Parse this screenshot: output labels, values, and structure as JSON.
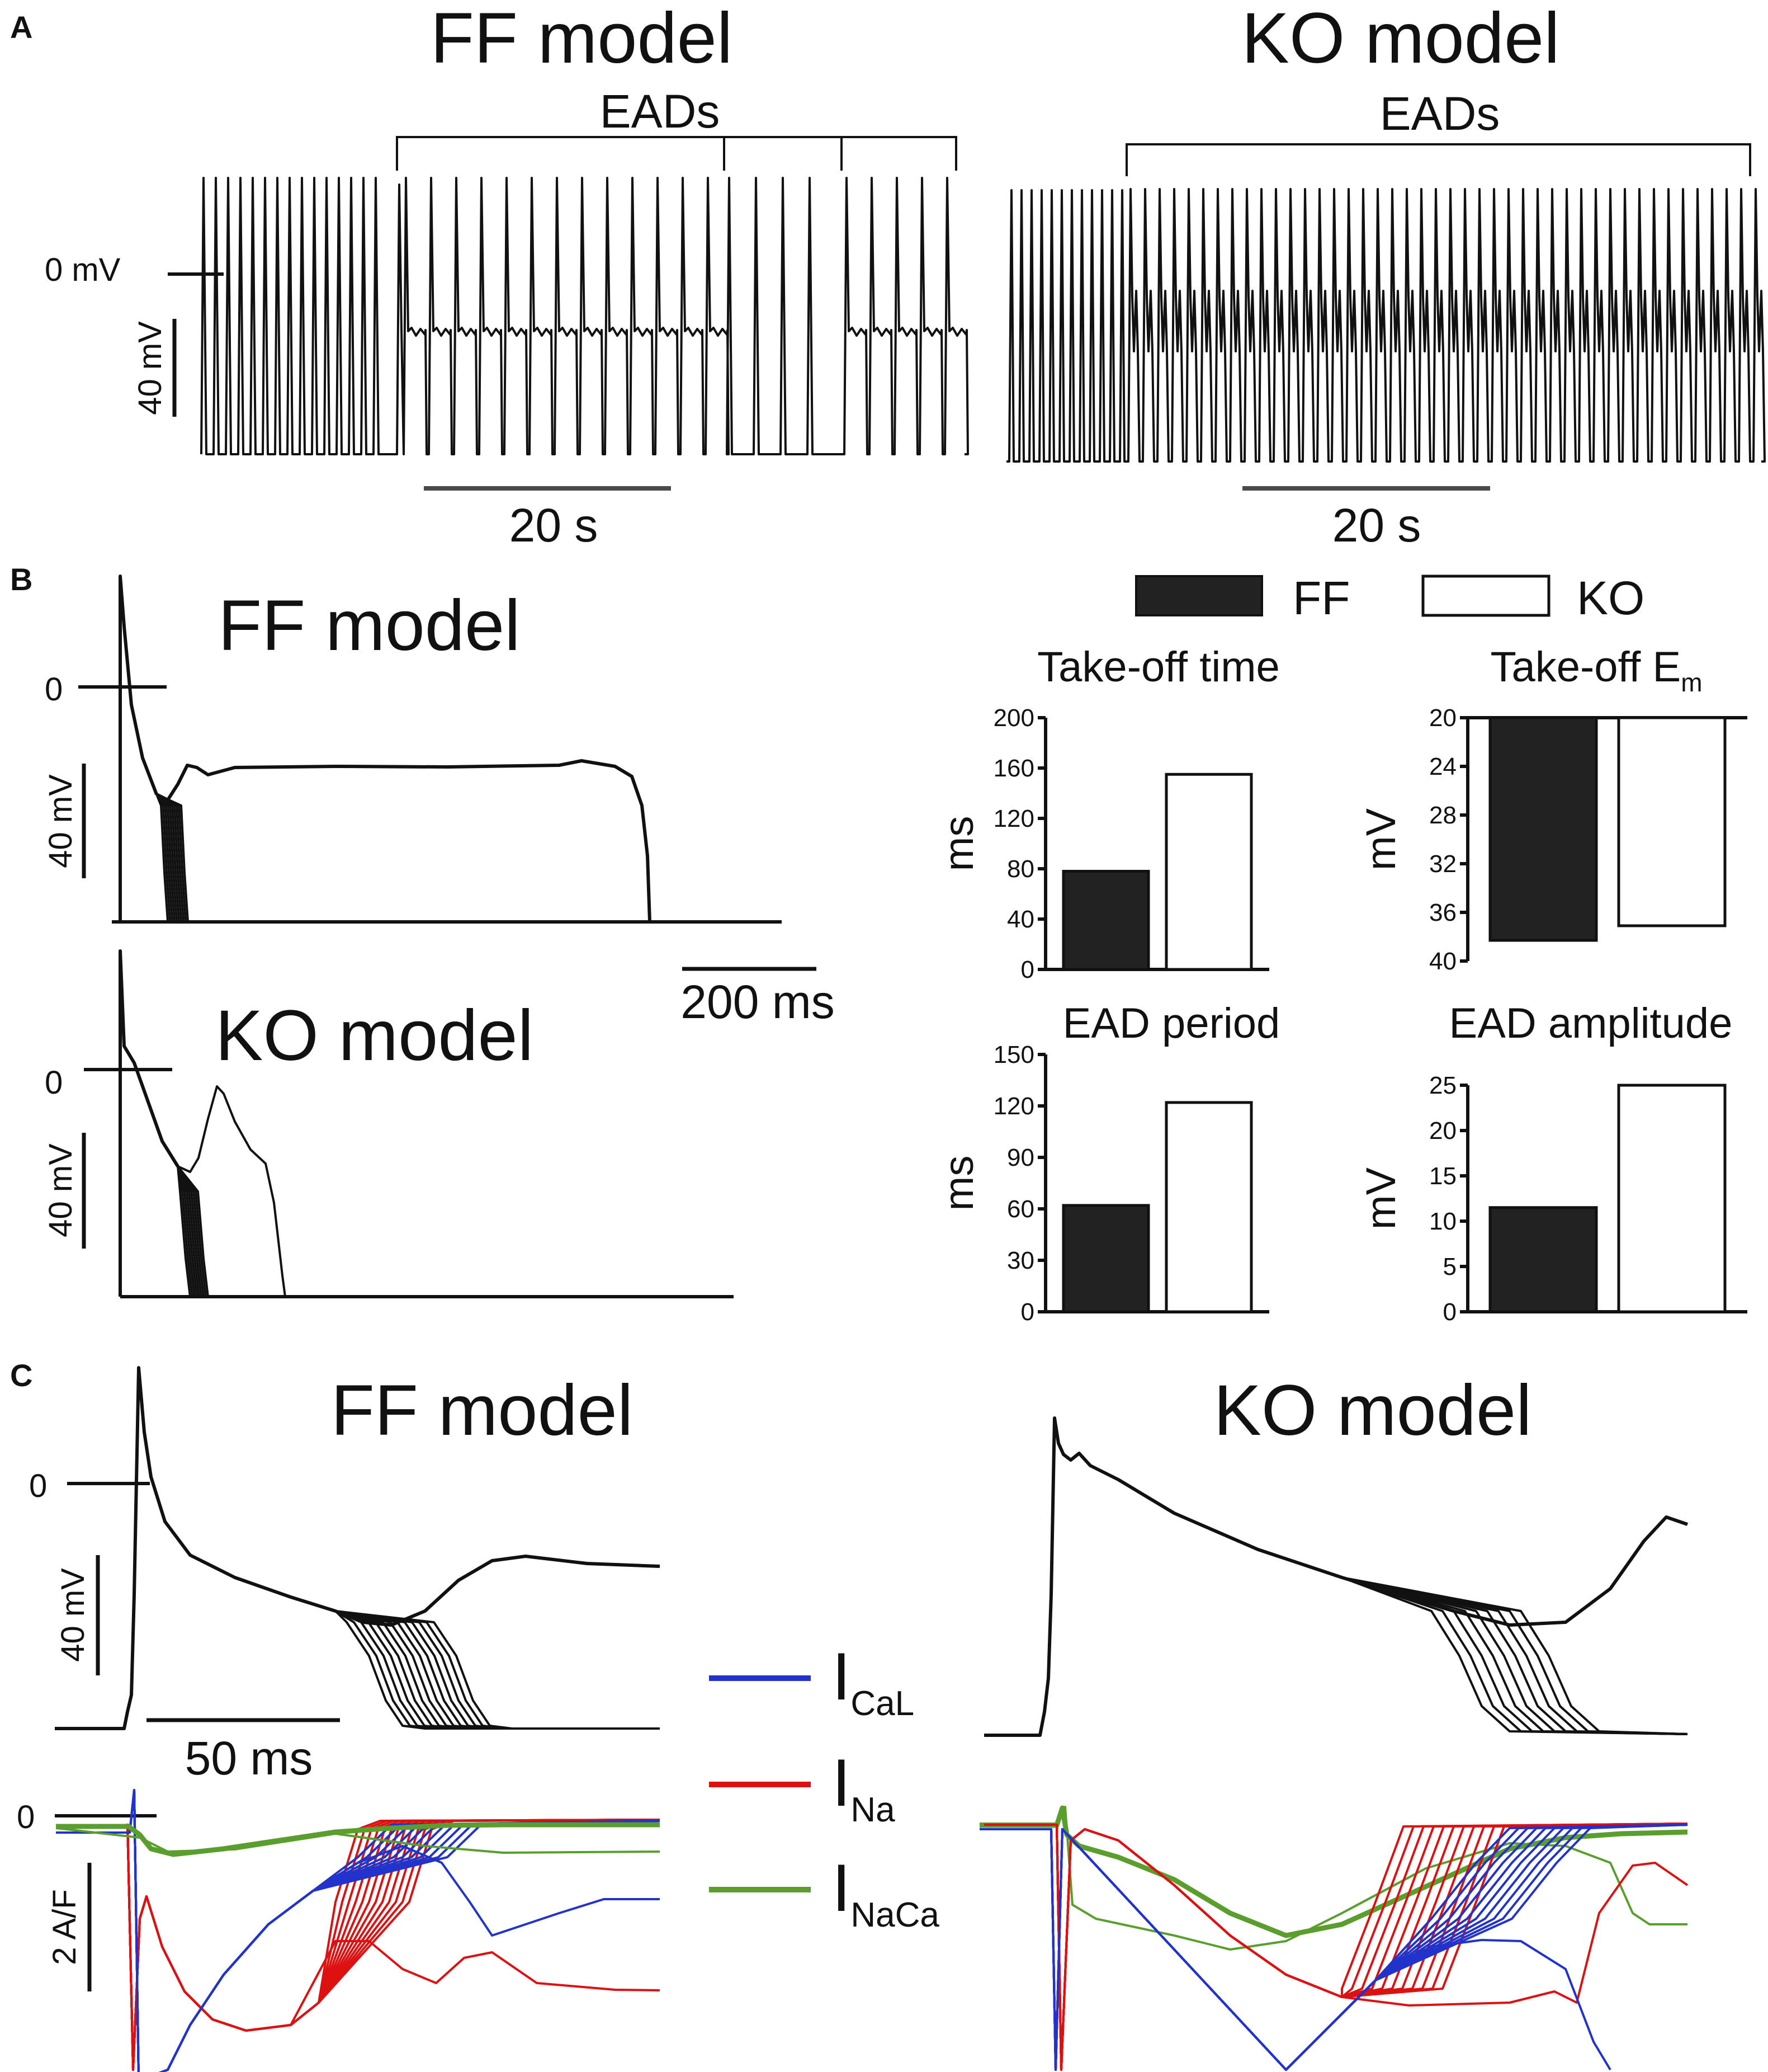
{
  "colors": {
    "ical": "#2233cc",
    "ina": "#dd1111",
    "inaca": "#5a9e2e",
    "ink": "#111111"
  },
  "panel_a": {
    "label": "A",
    "zero_label": "0 mV",
    "scale_mv": "40 mV",
    "ff": {
      "title": "FF model",
      "bracket_label": "EADs",
      "time_scale": "20 s"
    },
    "ko": {
      "title": "KO model",
      "bracket_label": "EADs",
      "time_scale": "20 s"
    }
  },
  "panel_b": {
    "label": "B",
    "ff": {
      "title": "FF model",
      "zero": "0",
      "scale_mv": "40 mV",
      "time_scale": "200 ms"
    },
    "ko": {
      "title": "KO model",
      "zero": "0",
      "scale_mv": "40 mV"
    },
    "legend": {
      "ff": "FF",
      "ko": "KO"
    }
  },
  "panel_c": {
    "label": "C",
    "ff": {
      "title": "FF model",
      "zero": "0",
      "scale_mv": "40 mV",
      "time_scale": "50 ms",
      "current_zero": "0",
      "current_scale": "2 A/F"
    },
    "ko": {
      "title": "KO model"
    },
    "legend": [
      {
        "main": "I",
        "sub": "CaL",
        "color": "#2233cc"
      },
      {
        "main": "I",
        "sub": "Na",
        "color": "#dd1111"
      },
      {
        "main": "I",
        "sub": "NaCa",
        "color": "#5a9e2e"
      }
    ]
  },
  "chart_data": [
    {
      "type": "bar",
      "title": "Take-off time",
      "ylabel": "ms",
      "categories": [
        "FF",
        "KO"
      ],
      "values": [
        78,
        155
      ],
      "ylim": [
        0,
        200
      ],
      "yticks": [
        "0",
        "40",
        "80",
        "120",
        "160",
        "200"
      ],
      "inverted": false
    },
    {
      "type": "bar",
      "title": "Take-off E",
      "title_sub": "m",
      "ylabel": "mV",
      "categories": [
        "FF",
        "KO"
      ],
      "values": [
        38.3,
        37.1
      ],
      "ylim": [
        20,
        40
      ],
      "yticks": [
        "20",
        "24",
        "28",
        "32",
        "36",
        "40"
      ],
      "inverted": true
    },
    {
      "type": "bar",
      "title": "EAD period",
      "ylabel": "ms",
      "categories": [
        "FF",
        "KO"
      ],
      "values": [
        62,
        122
      ],
      "ylim": [
        0,
        150
      ],
      "yticks": [
        "0",
        "30",
        "60",
        "90",
        "120",
        "150"
      ],
      "inverted": false
    },
    {
      "type": "bar",
      "title": "EAD amplitude",
      "ylabel": "mV",
      "categories": [
        "FF",
        "KO"
      ],
      "values": [
        11.5,
        25
      ],
      "ylim": [
        0,
        25
      ],
      "yticks": [
        "0",
        "5",
        "10",
        "15",
        "20",
        "25"
      ],
      "inverted": false
    }
  ]
}
